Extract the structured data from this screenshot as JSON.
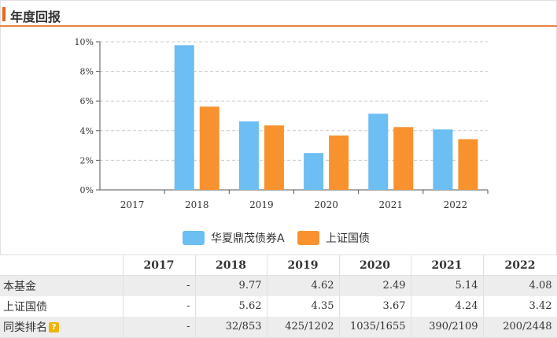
{
  "header": {
    "title": "年度回报"
  },
  "colors": {
    "fund": "#6cbef3",
    "index": "#f7922e",
    "accent": "#e8661e"
  },
  "chart_data": {
    "type": "bar",
    "categories": [
      "2017",
      "2018",
      "2019",
      "2020",
      "2021",
      "2022"
    ],
    "series": [
      {
        "name": "华夏鼎茂债券A",
        "values": [
          null,
          9.77,
          4.62,
          2.49,
          5.14,
          4.08
        ]
      },
      {
        "name": "上证国债",
        "values": [
          null,
          5.62,
          4.35,
          3.67,
          4.24,
          3.42
        ]
      }
    ],
    "ylim": [
      0,
      10
    ],
    "yticks": [
      "0%",
      "2%",
      "4%",
      "6%",
      "8%",
      "10%"
    ],
    "grid": true,
    "legend": "bottom"
  },
  "table": {
    "headers": [
      "",
      "2017",
      "2018",
      "2019",
      "2020",
      "2021",
      "2022"
    ],
    "rows": [
      {
        "label": "本基金",
        "cells": [
          "-",
          "9.77",
          "4.62",
          "2.49",
          "5.14",
          "4.08"
        ]
      },
      {
        "label": "上证国债",
        "cells": [
          "-",
          "5.62",
          "4.35",
          "3.67",
          "4.24",
          "3.42"
        ]
      },
      {
        "label": "同类排名",
        "cells": [
          "-",
          "32/853",
          "425/1202",
          "1035/1655",
          "390/2109",
          "200/2448"
        ]
      }
    ],
    "help_icon": "question-icon",
    "help_glyph": "?"
  }
}
